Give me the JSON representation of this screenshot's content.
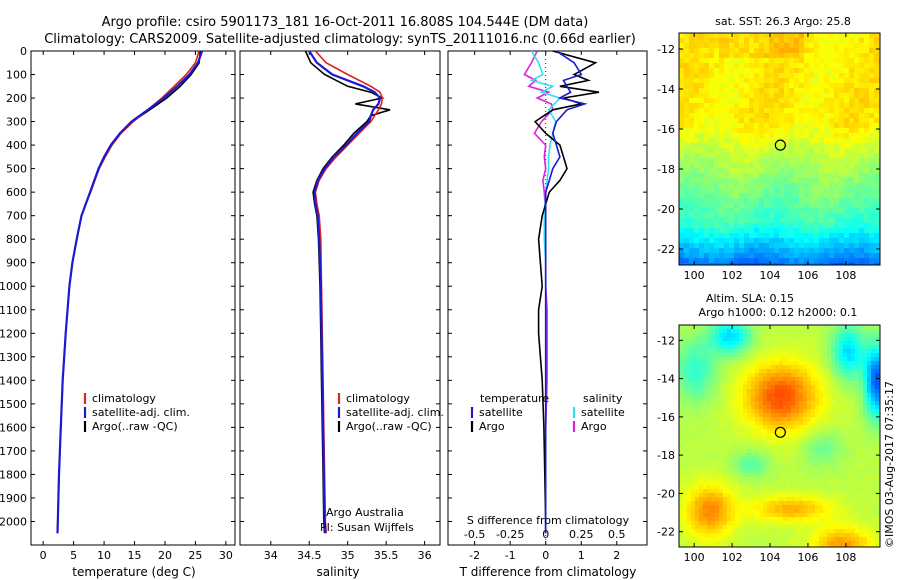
{
  "header": {
    "line1": "Argo profile: csiro 5901173_181 16-Oct-2011 16.808S 104.544E (DM data)",
    "line2": "Climatology: CARS2009. Satellite-adjusted climatology: synTS_20111016.nc (0.66d earlier)"
  },
  "colors": {
    "climatology": "#dd2222",
    "satellite": "#1a1ad0",
    "argo": "#000000",
    "sat_salinity": "#33e0ee",
    "argo_salinity": "#dd22dd"
  },
  "chart_data": [
    {
      "type": "line",
      "name": "temperature-panel",
      "xlabel": "temperature (deg C)",
      "ylabel": "",
      "xlim": [
        -2,
        31.5
      ],
      "ylim": [
        0,
        2100
      ],
      "x_ticks": [
        0,
        5,
        10,
        15,
        20,
        25,
        30
      ],
      "y_ticks": [
        0,
        100,
        200,
        300,
        400,
        500,
        600,
        700,
        800,
        900,
        1000,
        1100,
        1200,
        1300,
        1400,
        1500,
        1600,
        1700,
        1800,
        1900,
        2000
      ],
      "depth": [
        0,
        50,
        100,
        150,
        200,
        250,
        300,
        350,
        400,
        450,
        500,
        550,
        600,
        650,
        700,
        800,
        900,
        1000,
        1200,
        1400,
        1600,
        1800,
        2000,
        2050
      ],
      "series": [
        {
          "name": "climatology",
          "values": [
            25.6,
            25.0,
            23.5,
            21.5,
            19.5,
            17.2,
            14.8,
            12.8,
            11.3,
            10.2,
            9.2,
            8.5,
            7.8,
            7.0,
            6.3,
            5.5,
            4.8,
            4.3,
            3.7,
            3.2,
            2.9,
            2.6,
            2.4,
            2.35
          ]
        },
        {
          "name": "satellite-adj. clim.",
          "values": [
            26.1,
            25.4,
            24.0,
            22.0,
            19.8,
            17.2,
            14.5,
            12.6,
            11.1,
            10.0,
            9.1,
            8.4,
            7.7,
            7.0,
            6.3,
            5.5,
            4.8,
            4.3,
            3.7,
            3.2,
            2.9,
            2.6,
            2.4,
            2.35
          ]
        },
        {
          "name": "Argo(..raw -QC)",
          "values": [
            25.8,
            25.6,
            24.3,
            22.5,
            20.3,
            17.5,
            14.6,
            12.7,
            11.2,
            10.0,
            9.1,
            8.4,
            7.7,
            7.0,
            6.3,
            5.5,
            4.8,
            4.3,
            3.7,
            3.2,
            2.9,
            2.6,
            2.4,
            2.35
          ]
        }
      ],
      "legend": [
        "climatology",
        "satellite-adj. clim.",
        "Argo(..raw -QC)"
      ]
    },
    {
      "type": "line",
      "name": "salinity-panel",
      "xlabel": "salinity",
      "xlim": [
        33.6,
        36.2
      ],
      "ylim": [
        0,
        2100
      ],
      "x_ticks": [
        34,
        34.5,
        35,
        35.5,
        36
      ],
      "depth": [
        0,
        50,
        100,
        150,
        175,
        200,
        225,
        250,
        275,
        300,
        350,
        400,
        450,
        500,
        550,
        600,
        650,
        700,
        800,
        1000,
        1200,
        1400,
        1600,
        1800,
        2000,
        2050
      ],
      "series": [
        {
          "name": "climatology",
          "values": [
            34.58,
            34.72,
            35.0,
            35.3,
            35.42,
            35.45,
            35.44,
            35.4,
            35.35,
            35.3,
            35.15,
            35.0,
            34.85,
            34.72,
            34.63,
            34.58,
            34.6,
            34.63,
            34.65,
            34.66,
            34.67,
            34.68,
            34.69,
            34.7,
            34.71,
            34.72
          ]
        },
        {
          "name": "satellite-adj. clim.",
          "values": [
            34.5,
            34.6,
            34.8,
            35.2,
            35.35,
            35.42,
            35.4,
            35.33,
            35.3,
            35.28,
            35.12,
            34.98,
            34.82,
            34.7,
            34.61,
            34.57,
            34.58,
            34.61,
            34.63,
            34.65,
            34.66,
            34.67,
            34.68,
            34.69,
            34.7,
            34.71
          ]
        },
        {
          "name": "Argo(..raw -QC)",
          "values": [
            34.45,
            34.52,
            34.7,
            35.0,
            35.3,
            35.45,
            35.1,
            35.55,
            35.3,
            35.25,
            35.08,
            34.95,
            34.8,
            34.68,
            34.6,
            34.55,
            34.57,
            34.6,
            34.62,
            34.64,
            34.65,
            34.66,
            34.67,
            34.68,
            34.69,
            34.7
          ]
        }
      ],
      "legend": [
        "climatology",
        "satellite-adj. clim.",
        "Argo(..raw -QC)"
      ],
      "annotation_line1": "Argo Australia",
      "annotation_line2": "PI: Susan Wijffels"
    },
    {
      "type": "line",
      "name": "difference-panel",
      "xlabel": "T difference from climatology",
      "xlabel_top": "S difference from climatology",
      "xlim": [
        -2.75,
        2.85
      ],
      "ylim": [
        0,
        2100
      ],
      "x_ticks": [
        -2,
        -1,
        0,
        1,
        2
      ],
      "x_ticks_s": [
        "-0.5",
        "-0.25",
        "0",
        "0.25",
        "0.5"
      ],
      "x_ticks_s_values": [
        -0.5,
        -0.25,
        0,
        0.25,
        0.5
      ],
      "s_scale": 4,
      "depth": [
        0,
        50,
        100,
        125,
        150,
        175,
        200,
        225,
        250,
        300,
        350,
        400,
        450,
        500,
        550,
        600,
        700,
        800,
        900,
        1000,
        1100,
        1200,
        1400,
        1600,
        2000,
        2050
      ],
      "series": [
        {
          "name": "temperature satellite",
          "values": [
            0.3,
            0.8,
            1.0,
            0.5,
            0.6,
            0.7,
            0.4,
            1.1,
            0.6,
            0.3,
            0.2,
            0.3,
            0.4,
            0.2,
            0.1,
            0.0,
            0.0,
            0.0,
            0.0,
            0.0,
            0.0,
            0.0,
            0.0,
            0.0,
            0.0,
            0.0
          ]
        },
        {
          "name": "temperature Argo",
          "values": [
            0.2,
            1.4,
            0.8,
            1.2,
            0.4,
            1.5,
            0.5,
            1.0,
            0.2,
            -0.3,
            0.0,
            0.4,
            0.5,
            0.6,
            0.4,
            0.1,
            -0.1,
            -0.2,
            -0.15,
            -0.1,
            -0.2,
            -0.2,
            -0.1,
            -0.05,
            0.0,
            0.0
          ]
        },
        {
          "name": "salinity satellite",
          "values": [
            -0.1,
            -0.05,
            -0.02,
            -0.1,
            0.05,
            -0.03,
            0.1,
            0.06,
            0.02,
            0.07,
            0.05,
            0.03,
            0.02,
            0.02,
            0.01,
            0.0,
            -0.01,
            -0.01,
            0.0,
            0.0,
            0.0,
            0.0,
            0.0,
            0.0,
            0.0,
            0.0
          ]
        },
        {
          "name": "salinity Argo",
          "values": [
            -0.06,
            -0.1,
            -0.15,
            -0.07,
            -0.12,
            0.02,
            -0.06,
            0.04,
            0.05,
            -0.03,
            -0.08,
            0.0,
            -0.01,
            0.0,
            -0.02,
            -0.01,
            0.0,
            0.0,
            0.0,
            0.0,
            0.01,
            0.01,
            0.01,
            0.0,
            0.0,
            0.0
          ]
        }
      ],
      "legend_t_title": "temperature",
      "legend_s_title": "salinity",
      "legend_t": [
        "satellite",
        "Argo"
      ],
      "legend_s": [
        "satellite",
        "Argo"
      ]
    },
    {
      "type": "heatmap",
      "name": "sst-map",
      "title": "sat. SST: 26.3 Argo: 25.8",
      "xlim": [
        99.2,
        109.8
      ],
      "ylim": [
        -22.8,
        -11.2
      ],
      "x_ticks": [
        100,
        102,
        104,
        106,
        108
      ],
      "y_ticks": [
        -12,
        -14,
        -16,
        -18,
        -20,
        -22
      ],
      "marker": {
        "lon": 104.544,
        "lat": -16.808
      }
    },
    {
      "type": "heatmap",
      "name": "sla-map",
      "title_line1": "Altim. SLA: 0.15",
      "title_line2": "Argo h1000: 0.12 h2000: 0.1",
      "xlim": [
        99.2,
        109.8
      ],
      "ylim": [
        -22.8,
        -11.2
      ],
      "x_ticks": [
        100,
        102,
        104,
        106,
        108
      ],
      "y_ticks": [
        -12,
        -14,
        -16,
        -18,
        -20,
        -22
      ],
      "marker": {
        "lon": 104.544,
        "lat": -16.808
      }
    }
  ],
  "footer": {
    "stamp": "©IMOS 03-Aug-2017 07:35:17"
  }
}
